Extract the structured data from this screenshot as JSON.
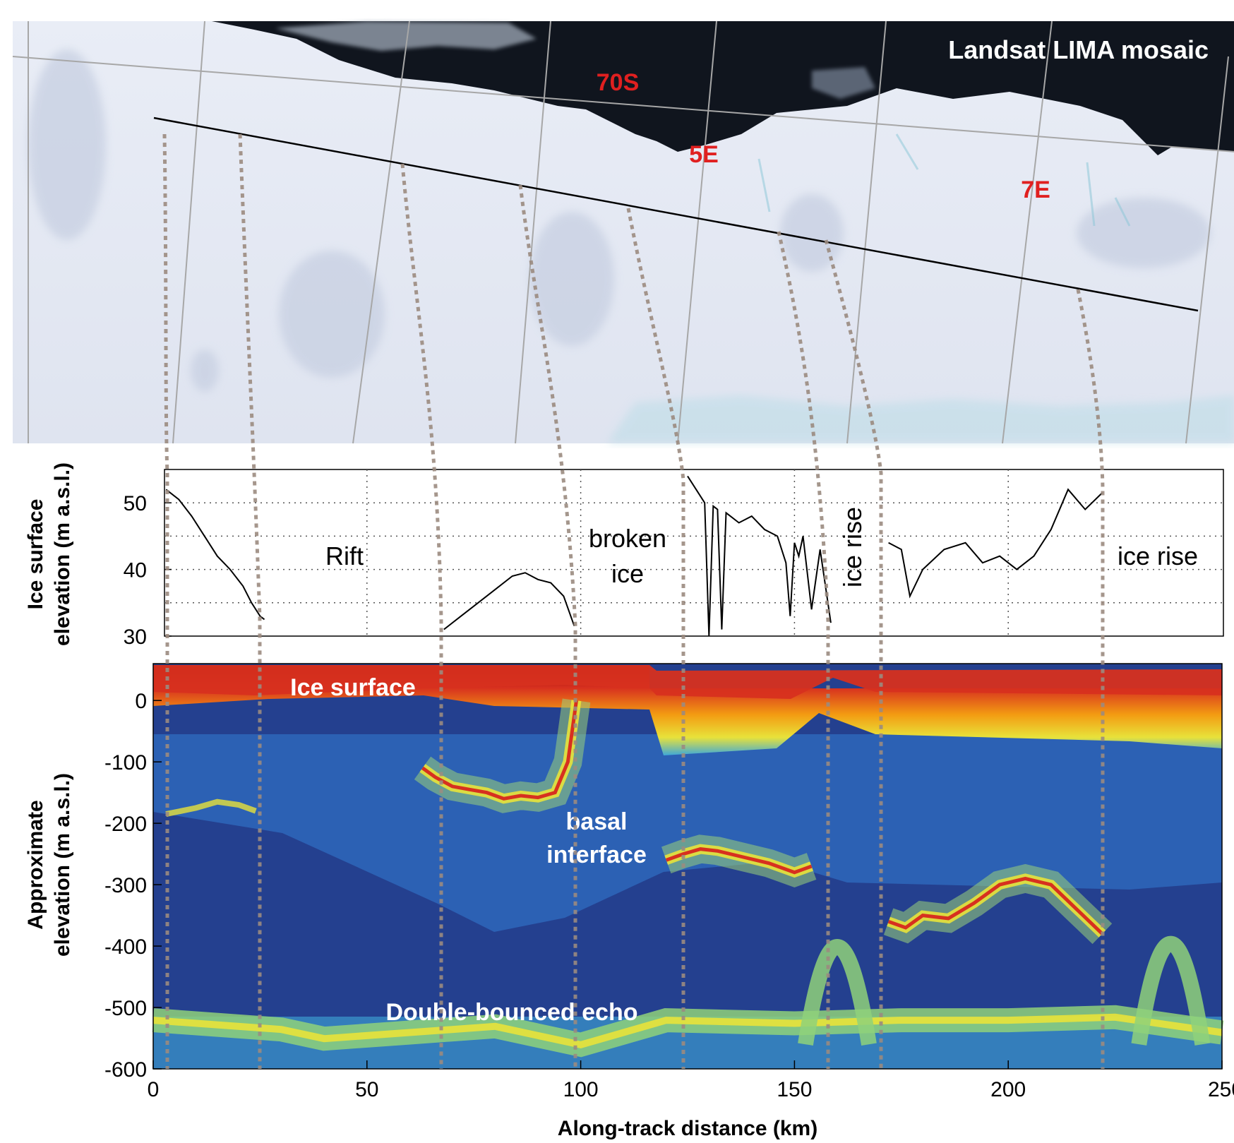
{
  "chart_data": [
    {
      "type": "image",
      "title": "Landsat LIMA mosaic",
      "annotations": [
        "70S",
        "5E",
        "7E"
      ],
      "annotation_color": "#e02020"
    },
    {
      "type": "line",
      "ylabel_line1": "Ice surface",
      "ylabel_line2": "elevation (m a.s.l.)",
      "xlim": [
        0,
        250
      ],
      "ylim": [
        30,
        55
      ],
      "yticks": [
        "30",
        "40",
        "50"
      ],
      "grid": true,
      "annotations": [
        "Rift",
        "broken",
        "ice",
        "ice rise",
        "ice rise"
      ],
      "segments": [
        {
          "x": [
            3,
            6,
            9,
            12,
            15,
            18,
            21,
            23,
            25,
            26
          ],
          "y": [
            52,
            50.5,
            48,
            45,
            42,
            40,
            37.5,
            35,
            33,
            32.5
          ]
        },
        {
          "x": [
            68,
            72,
            76,
            80,
            84,
            87,
            90,
            93,
            96,
            98.5
          ],
          "y": [
            31,
            33,
            35,
            37,
            39,
            39.5,
            38.5,
            38,
            36,
            31.5
          ]
        },
        {
          "x": [
            125,
            127,
            129,
            130,
            131,
            132,
            133,
            134,
            135,
            137,
            140,
            143,
            146,
            148,
            149,
            150,
            151,
            152,
            154,
            156,
            158.5
          ],
          "y": [
            54,
            52,
            50,
            30,
            49.5,
            49,
            31,
            48.5,
            48,
            47,
            48,
            46,
            45,
            41,
            33,
            44,
            42,
            45,
            34,
            43,
            32
          ]
        },
        {
          "x": [
            172,
            175,
            177,
            180,
            185,
            190,
            194,
            198,
            202,
            206,
            210,
            214,
            218,
            222
          ],
          "y": [
            44,
            43,
            36,
            40,
            43,
            44,
            41,
            42,
            40,
            42,
            46,
            52,
            49,
            51.5
          ]
        }
      ]
    },
    {
      "type": "heatmap",
      "ylabel_line1": "Approximate",
      "ylabel_line2": "elevation (m a.s.l.)",
      "xlabel": "Along-track distance (km)",
      "xlim": [
        0,
        250
      ],
      "ylim": [
        -600,
        60
      ],
      "yticks": [
        "0",
        "-100",
        "-200",
        "-300",
        "-400",
        "-500",
        "-600"
      ],
      "xticks": [
        "0",
        "50",
        "100",
        "150",
        "200",
        "250"
      ],
      "colormap": [
        "#1e3a8a",
        "#2f6cc0",
        "#3fa9d8",
        "#6ccf9a",
        "#e8e23a",
        "#f39c12",
        "#d7301f",
        "#7f0000"
      ],
      "annotations": [
        "Ice surface",
        "basal",
        "interface",
        "Double-bounced echo"
      ],
      "basal_interface": [
        {
          "x": [
            63,
            66,
            70,
            74,
            78,
            82,
            86,
            90,
            94,
            97,
            99
          ],
          "y": [
            -110,
            -125,
            -140,
            -145,
            -150,
            -160,
            -155,
            -158,
            -150,
            -100,
            0
          ]
        },
        {
          "x": [
            120,
            124,
            128,
            132,
            138,
            144,
            150,
            154
          ],
          "y": [
            -260,
            -250,
            -242,
            -245,
            -255,
            -265,
            -280,
            -270
          ]
        },
        {
          "x": [
            172,
            176,
            180,
            186,
            192,
            198,
            204,
            210,
            216,
            222
          ],
          "y": [
            -360,
            -370,
            -350,
            -355,
            -330,
            -300,
            -290,
            -300,
            -340,
            -380
          ]
        }
      ],
      "double_bounced_echo": {
        "x": [
          0,
          30,
          40,
          60,
          80,
          100,
          120,
          150,
          175,
          200,
          225,
          250
        ],
        "y": [
          -530,
          -545,
          -560,
          -550,
          -540,
          -570,
          -530,
          -535,
          -530,
          -530,
          -525,
          -550
        ]
      }
    }
  ]
}
